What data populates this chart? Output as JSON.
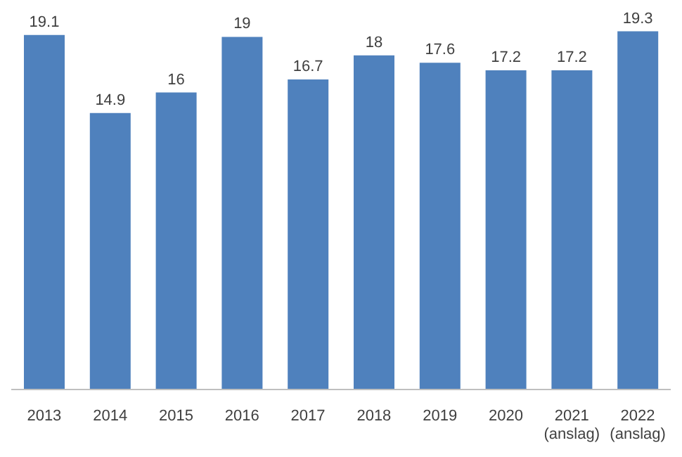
{
  "chart_data": {
    "type": "bar",
    "categories": [
      "2013",
      "2014",
      "2015",
      "2016",
      "2017",
      "2018",
      "2019",
      "2020",
      "2021 (anslag)",
      "2022 (anslag)"
    ],
    "values": [
      19.1,
      14.9,
      16,
      19,
      16.7,
      18,
      17.6,
      17.2,
      17.2,
      19.3
    ],
    "color": "#4f81bd",
    "data_labels": true,
    "grid": false,
    "legend": false
  }
}
